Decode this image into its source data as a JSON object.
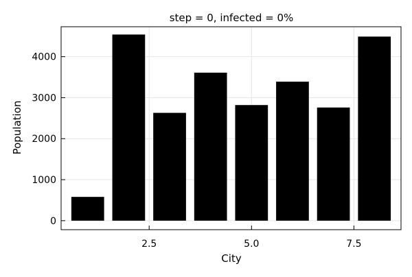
{
  "chart_data": {
    "type": "bar",
    "title": "step = 0, infected = 0%",
    "xlabel": "City",
    "ylabel": "Population",
    "x": [
      1,
      2,
      3,
      4,
      5,
      6,
      7,
      8
    ],
    "values": [
      580,
      4540,
      2630,
      3610,
      2820,
      3390,
      2760,
      4490
    ],
    "xlim": [
      0.35,
      8.65
    ],
    "ylim": [
      -220,
      4730
    ],
    "xticks": [
      2.5,
      5.0,
      7.5
    ],
    "xtick_labels": [
      "2.5",
      "5.0",
      "7.5"
    ],
    "yticks": [
      0,
      1000,
      2000,
      3000,
      4000
    ],
    "ytick_labels": [
      "0",
      "1000",
      "2000",
      "3000",
      "4000"
    ],
    "bar_width": 0.8,
    "bar_color": "#000000",
    "grid": true,
    "grid_color": "#e6e6e6",
    "legend": "none"
  }
}
